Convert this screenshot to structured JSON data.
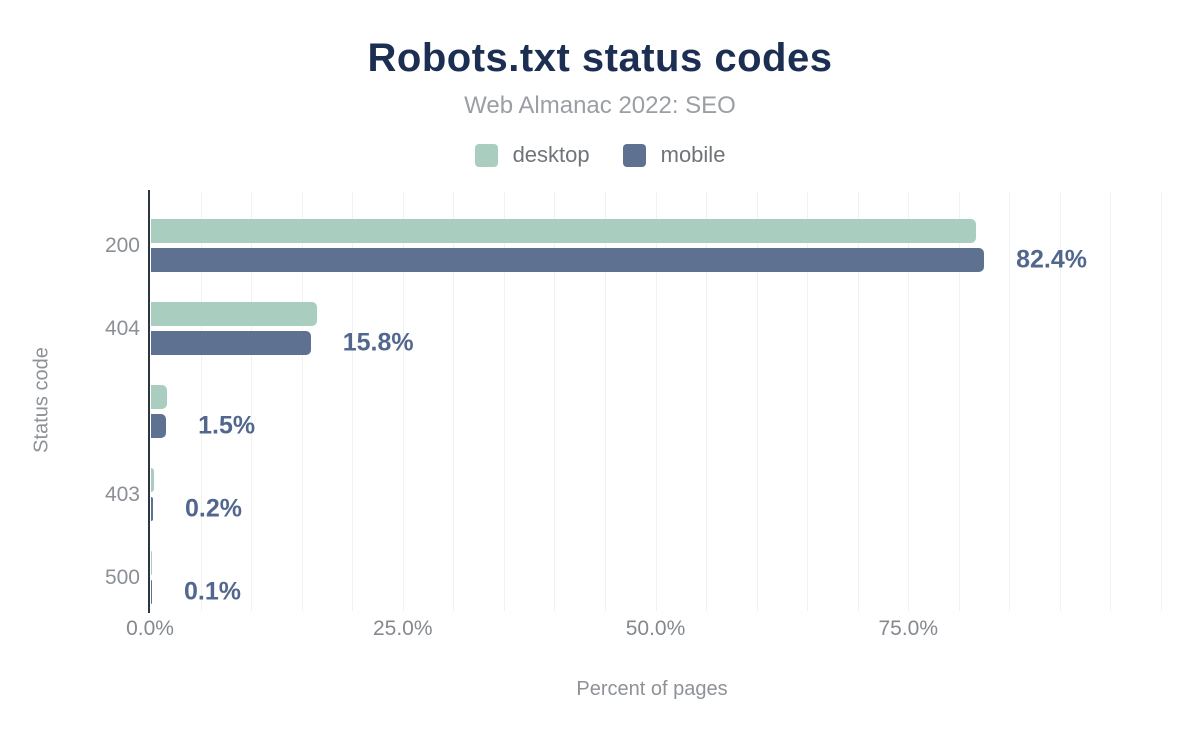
{
  "chart_data": {
    "type": "bar",
    "orientation": "horizontal",
    "title": "Robots.txt status codes",
    "subtitle": "Web Almanac 2022: SEO",
    "xlabel": "Percent of pages",
    "ylabel": "Status code",
    "categories": [
      "200",
      "404",
      "",
      "403",
      "500"
    ],
    "series": [
      {
        "name": "desktop",
        "color": "#a9cec0",
        "values": [
          81.6,
          16.4,
          1.6,
          0.3,
          0.1
        ]
      },
      {
        "name": "mobile",
        "color": "#5f7191",
        "values": [
          82.4,
          15.8,
          1.5,
          0.2,
          0.1
        ]
      }
    ],
    "value_labels": [
      "82.4%",
      "15.8%",
      "1.5%",
      "0.2%",
      "0.1%"
    ],
    "value_label_series": "mobile",
    "x_ticks": [
      {
        "label": "0.0%",
        "value": 0
      },
      {
        "label": "25.0%",
        "value": 25
      },
      {
        "label": "50.0%",
        "value": 50
      },
      {
        "label": "75.0%",
        "value": 75
      }
    ],
    "xlim": [
      0,
      100
    ],
    "grid_step": 5,
    "grid_on": true,
    "legend_position": "top",
    "colors": {
      "title": "#1c2e52",
      "subtitle": "#9b9ea3",
      "value_label": "#52678e",
      "axis_line": "#2b3641",
      "gridline": "#f1f2f4",
      "tick_label": "#85898e"
    }
  }
}
